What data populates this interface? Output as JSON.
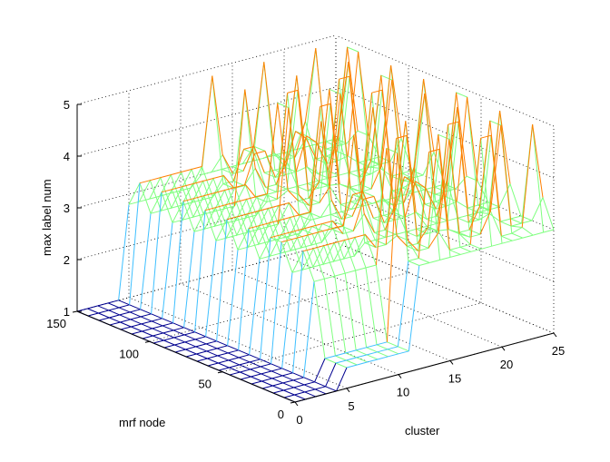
{
  "chart_data": {
    "type": "surface3d",
    "title": "",
    "xlabel": "cluster",
    "ylabel": "mrf node",
    "zlabel": "max label num",
    "xlim": [
      0,
      25
    ],
    "ylim": [
      0,
      150
    ],
    "zlim": [
      1,
      5
    ],
    "xticks": [
      "0",
      "5",
      "10",
      "15",
      "20",
      "25"
    ],
    "yticks": [
      "0",
      "50",
      "100",
      "150"
    ],
    "zticks": [
      "1",
      "2",
      "3",
      "4",
      "5"
    ],
    "grid": true,
    "colormap": "jet",
    "colors": {
      "low": "#00008f",
      "mid": "#3fc0ff",
      "mid_high": "#7fff7f",
      "high": "#ff7f00"
    },
    "surface_description_values": {
      "region_low_clusters": {
        "cluster_range": [
          0,
          5
        ],
        "max_label_num": 1
      },
      "region_mid_clusters": {
        "cluster_range": [
          5,
          12
        ],
        "max_label_num": 3
      },
      "region_high_clusters": {
        "cluster_range": [
          12,
          25
        ],
        "max_label_num": [
          3,
          5
        ]
      }
    }
  }
}
